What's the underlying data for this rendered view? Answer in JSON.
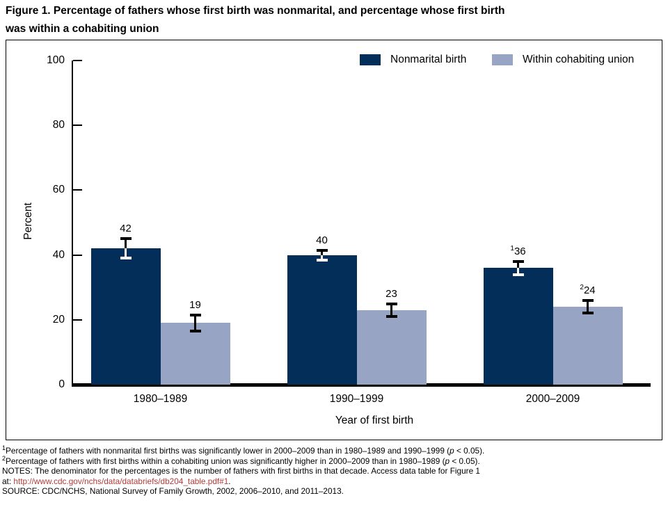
{
  "title": {
    "line1": "Figure 1. Percentage of fathers whose first birth was nonmarital, and percentage whose first birth",
    "line2": "was within a cohabiting union"
  },
  "colors": {
    "nonmarital_bar": "#032e5a",
    "cohabiting_bar": "#97a4c3",
    "axis": "#000000",
    "error_on_dark": "#ffffff",
    "error_on_light": "#000000",
    "link_text": "#b23b3b"
  },
  "chart_data": {
    "type": "bar",
    "categories": [
      "1980–1989",
      "1990–1999",
      "2000–2009"
    ],
    "series": [
      {
        "name": "Nonmarital birth",
        "color_key": "nonmarital_bar",
        "values": [
          42,
          40,
          36
        ],
        "error_bars": [
          3,
          1.5,
          2
        ],
        "value_labels": [
          "42",
          "40",
          "36"
        ],
        "label_superscripts": [
          "",
          "",
          "1"
        ]
      },
      {
        "name": "Within cohabiting union",
        "color_key": "cohabiting_bar",
        "values": [
          19,
          23,
          24
        ],
        "error_bars": [
          2.5,
          2,
          2
        ],
        "value_labels": [
          "19",
          "23",
          "24"
        ],
        "label_superscripts": [
          "",
          "",
          "2"
        ]
      }
    ],
    "xlabel": "Year of first birth",
    "ylabel": "Percent",
    "ylim": [
      0,
      100
    ],
    "yticks": [
      0,
      20,
      40,
      60,
      80,
      100
    ],
    "grid": false,
    "legend_position": "top-right"
  },
  "footnotes": {
    "line1": {
      "sup": "1",
      "text": "Percentage of fathers with nonmarital first births was significantly lower in 2000–2009 than in 1980–1989 and 1990–1999 (",
      "italic": "p",
      "tail": " < 0.05)."
    },
    "line2": {
      "sup": "2",
      "text": "Percentage of fathers with first births within a cohabiting union was significantly higher in 2000–2009 than in 1980–1989 (",
      "italic": "p",
      "tail": " < 0.05)."
    },
    "line3": {
      "text": "NOTES: The denominator for the percentages is the number of fathers with first births in that decade. Access data table for Figure 1"
    },
    "line4": {
      "pre": "at: ",
      "link": "http://www.cdc.gov/nchs/data/databriefs/db204_table.pdf#1",
      "tail": "."
    },
    "line5": {
      "text": "SOURCE: CDC/NCHS, National Survey of Family Growth, 2002, 2006–2010, and 2011–2013."
    }
  }
}
